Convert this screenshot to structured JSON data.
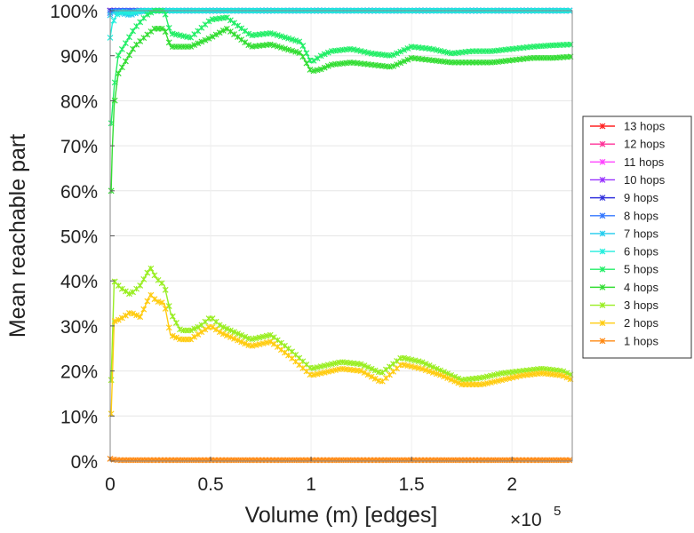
{
  "chart_data": {
    "type": "line",
    "xlabel": "Volume (m) [edges]",
    "ylabel": "Mean reachable part",
    "x_multiplier": {
      "base": "×10",
      "exponent": "5"
    },
    "xlim": [
      0,
      2.3
    ],
    "ylim": [
      0,
      1
    ],
    "x_ticks": [
      "0",
      "0.5",
      "1",
      "1.5",
      "2"
    ],
    "x_tick_values": [
      0,
      0.5,
      1,
      1.5,
      2
    ],
    "y_ticks": [
      "0%",
      "10%",
      "20%",
      "30%",
      "40%",
      "50%",
      "60%",
      "70%",
      "80%",
      "90%",
      "100%"
    ],
    "grid": true,
    "legend_position": "right",
    "series": [
      {
        "name": "13 hops",
        "color": "#ff2020",
        "points": [
          [
            0,
            1.0
          ],
          [
            2.3,
            1.0
          ]
        ]
      },
      {
        "name": "12 hops",
        "color": "#ff3399",
        "points": [
          [
            0,
            1.0
          ],
          [
            2.3,
            1.0
          ]
        ]
      },
      {
        "name": "11 hops",
        "color": "#ff44ff",
        "points": [
          [
            0,
            1.0
          ],
          [
            2.3,
            1.0
          ]
        ]
      },
      {
        "name": "10 hops",
        "color": "#9933ff",
        "points": [
          [
            0,
            1.0
          ],
          [
            2.3,
            1.0
          ]
        ]
      },
      {
        "name": "9 hops",
        "color": "#3333dd",
        "points": [
          [
            0,
            1.0
          ],
          [
            2.3,
            1.0
          ]
        ]
      },
      {
        "name": "8 hops",
        "color": "#3377ff",
        "points": [
          [
            0,
            0.995
          ],
          [
            0.02,
            1.0
          ],
          [
            2.3,
            1.0
          ]
        ]
      },
      {
        "name": "7 hops",
        "color": "#22ccee",
        "points": [
          [
            0,
            0.99
          ],
          [
            0.02,
            0.998
          ],
          [
            0.05,
            0.995
          ],
          [
            0.1,
            0.99
          ],
          [
            0.15,
            0.998
          ],
          [
            0.2,
            1.0
          ],
          [
            2.3,
            1.0
          ]
        ]
      },
      {
        "name": "6 hops",
        "color": "#22eedd",
        "points": [
          [
            0,
            0.94
          ],
          [
            0.01,
            0.97
          ],
          [
            0.03,
            0.99
          ],
          [
            0.06,
            0.998
          ],
          [
            0.1,
            0.995
          ],
          [
            0.15,
            1.0
          ],
          [
            2.3,
            1.0
          ]
        ]
      },
      {
        "name": "5 hops",
        "color": "#22ee66",
        "points": [
          [
            0.005,
            0.75
          ],
          [
            0.02,
            0.83
          ],
          [
            0.04,
            0.9
          ],
          [
            0.08,
            0.93
          ],
          [
            0.12,
            0.96
          ],
          [
            0.18,
            0.99
          ],
          [
            0.22,
            1.0
          ],
          [
            0.27,
            1.0
          ],
          [
            0.3,
            0.95
          ],
          [
            0.4,
            0.94
          ],
          [
            0.5,
            0.98
          ],
          [
            0.58,
            0.985
          ],
          [
            0.7,
            0.945
          ],
          [
            0.8,
            0.95
          ],
          [
            0.95,
            0.93
          ],
          [
            1.0,
            0.885
          ],
          [
            1.05,
            0.9
          ],
          [
            1.1,
            0.91
          ],
          [
            1.2,
            0.915
          ],
          [
            1.3,
            0.905
          ],
          [
            1.4,
            0.9
          ],
          [
            1.5,
            0.92
          ],
          [
            1.6,
            0.915
          ],
          [
            1.7,
            0.905
          ],
          [
            1.8,
            0.91
          ],
          [
            1.9,
            0.91
          ],
          [
            2.0,
            0.915
          ],
          [
            2.1,
            0.92
          ],
          [
            2.2,
            0.923
          ],
          [
            2.3,
            0.925
          ]
        ]
      },
      {
        "name": "4 hops",
        "color": "#33dd33",
        "points": [
          [
            0.005,
            0.6
          ],
          [
            0.01,
            0.69
          ],
          [
            0.02,
            0.79
          ],
          [
            0.04,
            0.86
          ],
          [
            0.08,
            0.89
          ],
          [
            0.12,
            0.92
          ],
          [
            0.18,
            0.945
          ],
          [
            0.22,
            0.96
          ],
          [
            0.27,
            0.96
          ],
          [
            0.3,
            0.92
          ],
          [
            0.4,
            0.92
          ],
          [
            0.5,
            0.94
          ],
          [
            0.58,
            0.96
          ],
          [
            0.7,
            0.92
          ],
          [
            0.8,
            0.925
          ],
          [
            0.95,
            0.905
          ],
          [
            1.0,
            0.865
          ],
          [
            1.05,
            0.87
          ],
          [
            1.1,
            0.88
          ],
          [
            1.2,
            0.885
          ],
          [
            1.3,
            0.88
          ],
          [
            1.4,
            0.875
          ],
          [
            1.5,
            0.895
          ],
          [
            1.6,
            0.89
          ],
          [
            1.7,
            0.885
          ],
          [
            1.8,
            0.885
          ],
          [
            1.9,
            0.885
          ],
          [
            2.0,
            0.89
          ],
          [
            2.1,
            0.895
          ],
          [
            2.2,
            0.895
          ],
          [
            2.3,
            0.898
          ]
        ]
      },
      {
        "name": "3 hops",
        "color": "#99ee22",
        "points": [
          [
            0.005,
            0.18
          ],
          [
            0.02,
            0.4
          ],
          [
            0.05,
            0.385
          ],
          [
            0.1,
            0.37
          ],
          [
            0.15,
            0.39
          ],
          [
            0.2,
            0.43
          ],
          [
            0.23,
            0.405
          ],
          [
            0.27,
            0.39
          ],
          [
            0.3,
            0.33
          ],
          [
            0.35,
            0.29
          ],
          [
            0.4,
            0.29
          ],
          [
            0.45,
            0.3
          ],
          [
            0.5,
            0.32
          ],
          [
            0.55,
            0.3
          ],
          [
            0.6,
            0.29
          ],
          [
            0.7,
            0.27
          ],
          [
            0.8,
            0.28
          ],
          [
            0.9,
            0.245
          ],
          [
            1.0,
            0.205
          ],
          [
            1.05,
            0.21
          ],
          [
            1.15,
            0.22
          ],
          [
            1.25,
            0.215
          ],
          [
            1.35,
            0.195
          ],
          [
            1.45,
            0.23
          ],
          [
            1.55,
            0.22
          ],
          [
            1.65,
            0.2
          ],
          [
            1.75,
            0.18
          ],
          [
            1.85,
            0.185
          ],
          [
            1.95,
            0.195
          ],
          [
            2.05,
            0.2
          ],
          [
            2.15,
            0.205
          ],
          [
            2.25,
            0.2
          ],
          [
            2.3,
            0.19
          ]
        ]
      },
      {
        "name": "2 hops",
        "color": "#ffcc11",
        "points": [
          [
            0.005,
            0.105
          ],
          [
            0.02,
            0.31
          ],
          [
            0.05,
            0.315
          ],
          [
            0.1,
            0.33
          ],
          [
            0.15,
            0.32
          ],
          [
            0.2,
            0.37
          ],
          [
            0.23,
            0.355
          ],
          [
            0.27,
            0.35
          ],
          [
            0.3,
            0.28
          ],
          [
            0.35,
            0.27
          ],
          [
            0.4,
            0.27
          ],
          [
            0.45,
            0.285
          ],
          [
            0.5,
            0.3
          ],
          [
            0.55,
            0.285
          ],
          [
            0.6,
            0.275
          ],
          [
            0.7,
            0.255
          ],
          [
            0.8,
            0.265
          ],
          [
            0.9,
            0.23
          ],
          [
            1.0,
            0.19
          ],
          [
            1.05,
            0.195
          ],
          [
            1.15,
            0.205
          ],
          [
            1.25,
            0.2
          ],
          [
            1.35,
            0.175
          ],
          [
            1.45,
            0.215
          ],
          [
            1.55,
            0.205
          ],
          [
            1.65,
            0.19
          ],
          [
            1.75,
            0.17
          ],
          [
            1.85,
            0.17
          ],
          [
            1.95,
            0.18
          ],
          [
            2.05,
            0.19
          ],
          [
            2.15,
            0.195
          ],
          [
            2.25,
            0.19
          ],
          [
            2.3,
            0.18
          ]
        ]
      },
      {
        "name": "1 hops",
        "color": "#ff8811",
        "points": [
          [
            0,
            0.005
          ],
          [
            0.02,
            0.003
          ],
          [
            0.05,
            0.002
          ],
          [
            2.3,
            0.002
          ]
        ]
      }
    ]
  }
}
